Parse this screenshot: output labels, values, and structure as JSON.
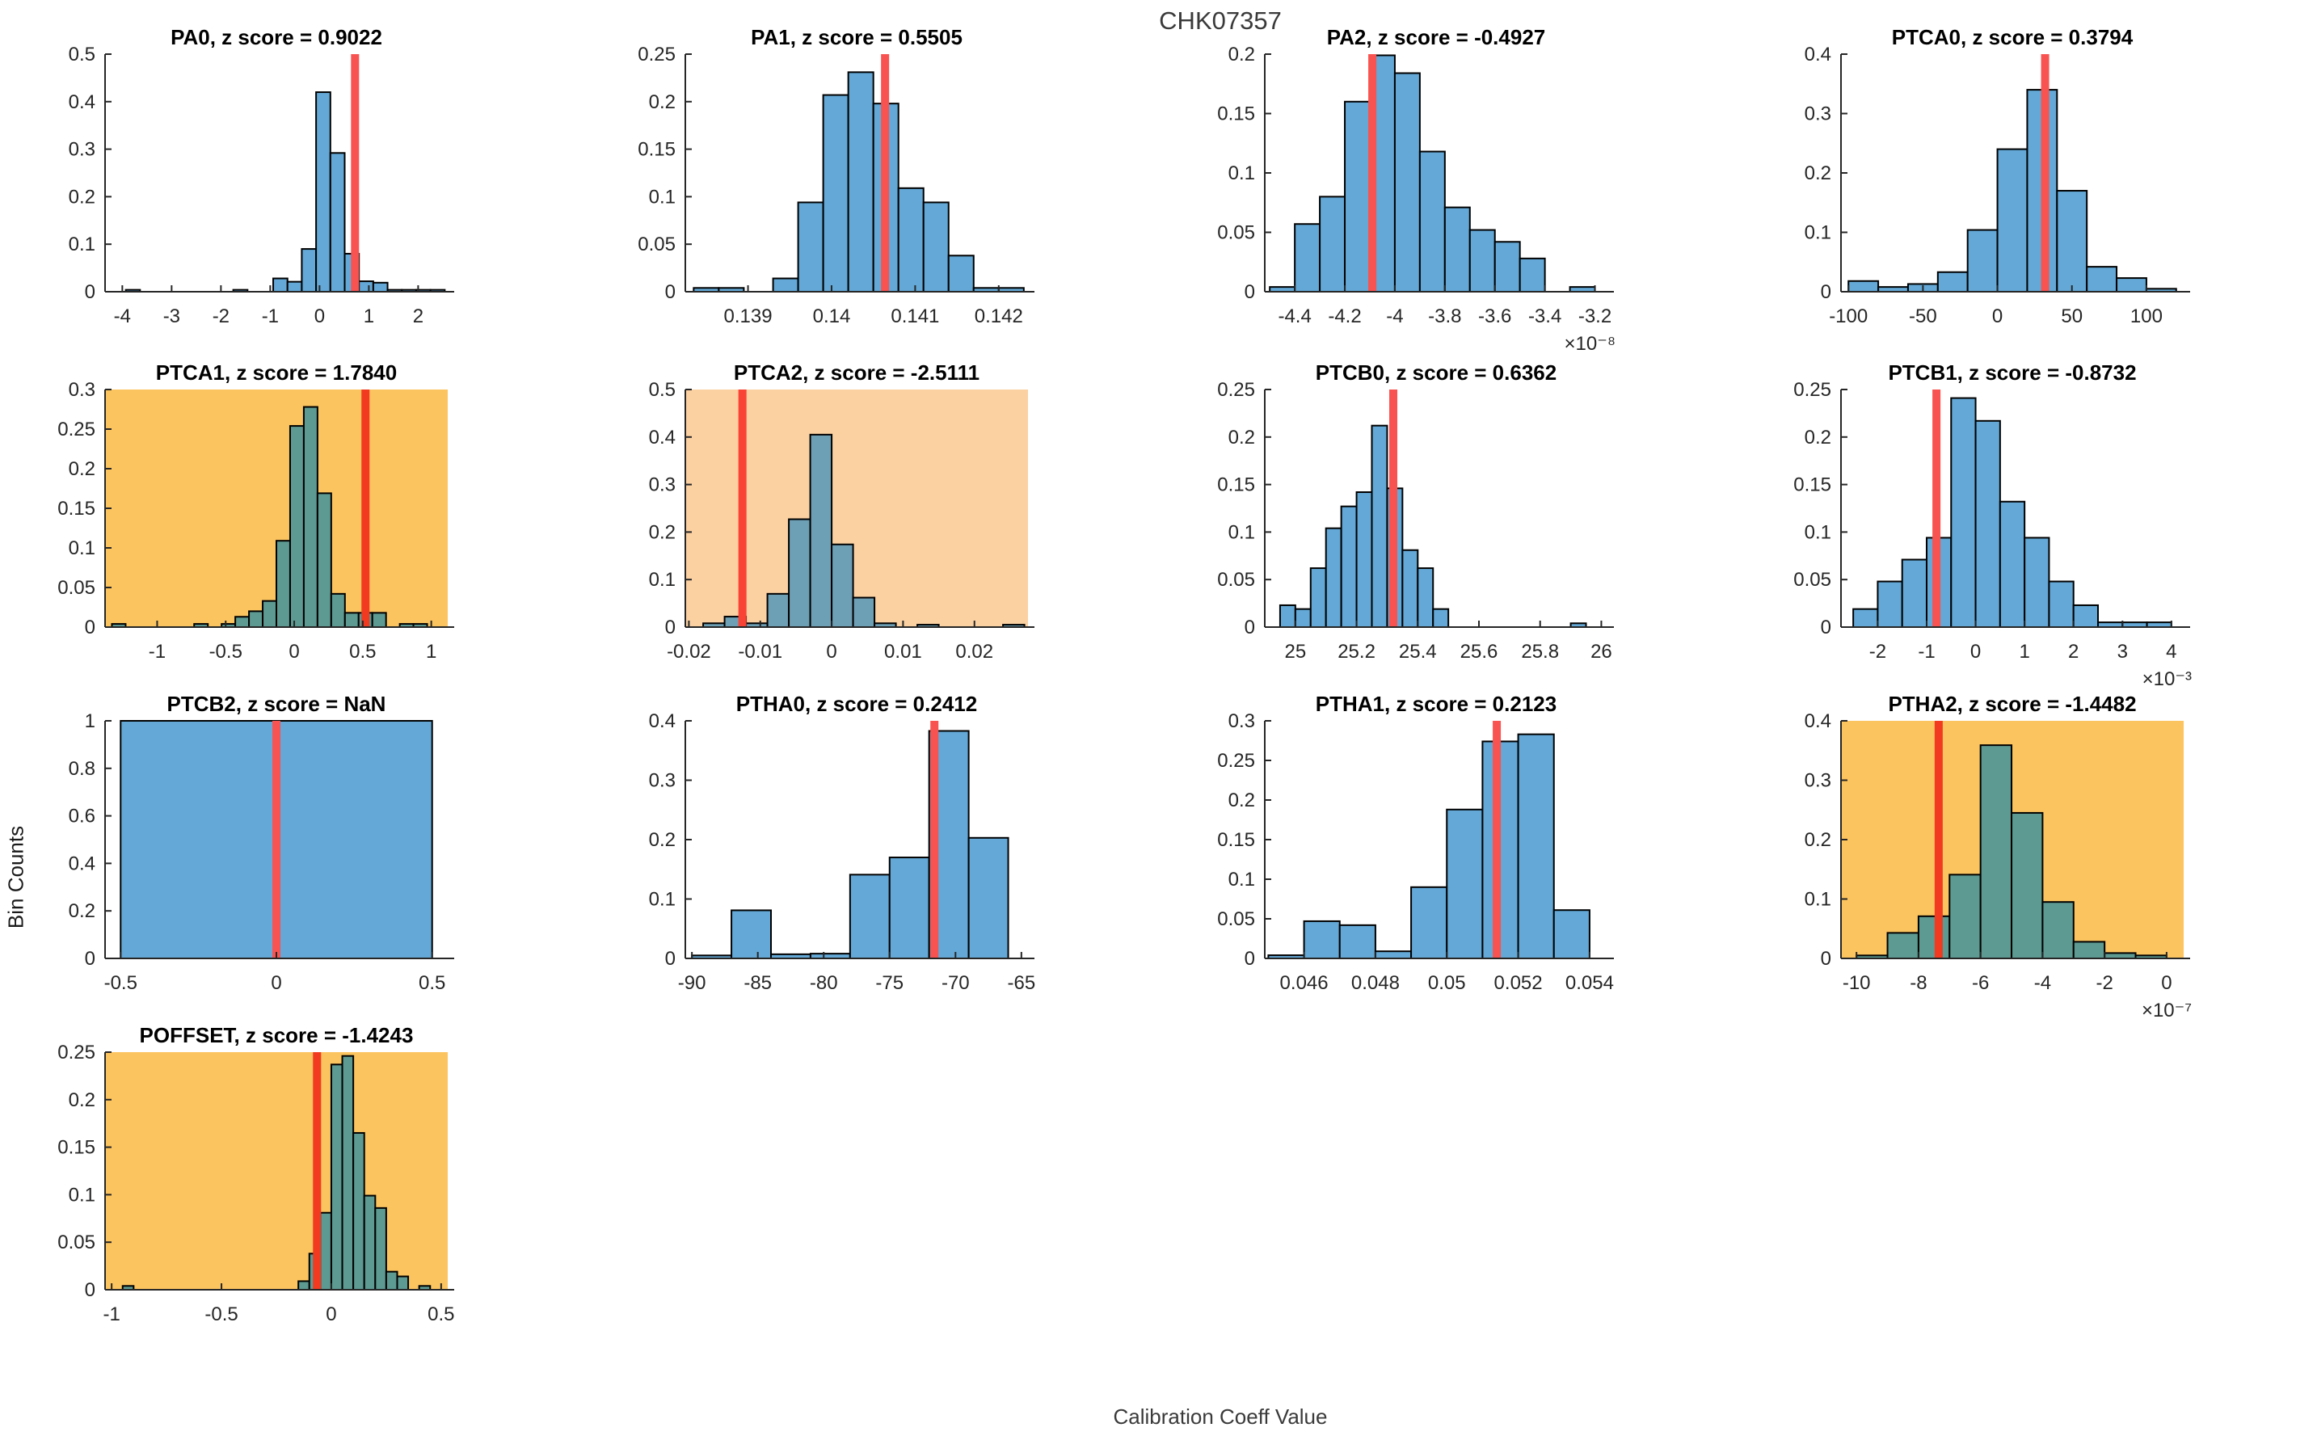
{
  "figure": {
    "title": "CHK07357",
    "xlabel": "Calibration Coeff Value",
    "ylabel": "Bin Counts"
  },
  "colors": {
    "axis": "#262626",
    "bar_edge": "#000000",
    "bar_fill_white": "#63a8d6",
    "bar_fill_gold": "#5c9a92",
    "bar_fill_peach": "#6d9fb5",
    "red_line_white": "#f85350",
    "red_line_gold": "#f23a20",
    "red_line_peach": "#f94334",
    "bg_white": "#ffffff",
    "bg_gold": "#fcc45f",
    "bg_peach": "#fbd1a2"
  },
  "chart_data": [
    {
      "type": "bar",
      "name": "PA0",
      "title": "PA0, z score = 0.9022",
      "z_score": 0.9022,
      "row": 0,
      "col": 0,
      "background": "white",
      "xlim": [
        -4.35,
        2.6
      ],
      "ylim": [
        0,
        0.5
      ],
      "xtick_values": [
        -4,
        -3,
        -2,
        -1,
        0,
        1,
        2
      ],
      "xtick_labels": [
        "-4",
        "-3",
        "-2",
        "-1",
        "0",
        "1",
        "2"
      ],
      "ytick_values": [
        0,
        0.1,
        0.2,
        0.3,
        0.4,
        0.5
      ],
      "ytick_labels": [
        "0",
        "0.1",
        "0.2",
        "0.3",
        "0.4",
        "0.5"
      ],
      "bin_width": 0.29,
      "bars": [
        [
          -3.93,
          0.004
        ],
        [
          -1.75,
          0.004
        ],
        [
          -0.94,
          0.028
        ],
        [
          -0.65,
          0.021
        ],
        [
          -0.36,
          0.09
        ],
        [
          -0.07,
          0.42
        ],
        [
          0.22,
          0.292
        ],
        [
          0.51,
          0.08
        ],
        [
          0.8,
          0.022
        ],
        [
          1.09,
          0.019
        ],
        [
          1.38,
          0.004
        ],
        [
          1.67,
          0.004
        ],
        [
          1.96,
          0.004
        ],
        [
          2.25,
          0.004
        ]
      ],
      "red_line_x": 0.72
    },
    {
      "type": "bar",
      "name": "PA1",
      "title": "PA1, z score = 0.5505",
      "z_score": 0.5505,
      "row": 0,
      "col": 1,
      "background": "white",
      "xlim": [
        0.13825,
        0.14235
      ],
      "ylim": [
        0,
        0.25
      ],
      "xtick_values": [
        0.139,
        0.14,
        0.141,
        0.142
      ],
      "xtick_labels": [
        "0.139",
        "0.14",
        "0.141",
        "0.142"
      ],
      "ytick_values": [
        0,
        0.05,
        0.1,
        0.15,
        0.2,
        0.25
      ],
      "ytick_labels": [
        "0",
        "0.05",
        "0.1",
        "0.15",
        "0.2",
        "0.25"
      ],
      "bin_width": 0.0003,
      "bars": [
        [
          0.13835,
          0.004
        ],
        [
          0.13865,
          0.004
        ],
        [
          0.1393,
          0.014
        ],
        [
          0.1396,
          0.094
        ],
        [
          0.1399,
          0.207
        ],
        [
          0.1402,
          0.231
        ],
        [
          0.1405,
          0.198
        ],
        [
          0.1408,
          0.109
        ],
        [
          0.1411,
          0.094
        ],
        [
          0.1414,
          0.038
        ],
        [
          0.1417,
          0.004
        ],
        [
          0.142,
          0.004
        ]
      ],
      "red_line_x": 0.14064
    },
    {
      "type": "bar",
      "name": "PA2",
      "title": "PA2, z score = -0.4927",
      "z_score": -0.4927,
      "row": 0,
      "col": 2,
      "background": "white",
      "xlim": [
        -4.52,
        -3.15
      ],
      "ylim": [
        0,
        0.2
      ],
      "xtick_values": [
        -4.4,
        -4.2,
        -4,
        -3.8,
        -3.6,
        -3.4,
        -3.2
      ],
      "xtick_labels": [
        "-4.4",
        "-4.2",
        "-4",
        "-3.8",
        "-3.6",
        "-3.4",
        "-3.2"
      ],
      "ytick_values": [
        0,
        0.05,
        0.1,
        0.15,
        0.2
      ],
      "ytick_labels": [
        "0",
        "0.05",
        "0.1",
        "0.15",
        "0.2"
      ],
      "x_exponent_label": "×10⁻⁸",
      "bin_width": 0.1,
      "bars": [
        [
          -4.5,
          0.004
        ],
        [
          -4.4,
          0.057
        ],
        [
          -4.3,
          0.08
        ],
        [
          -4.2,
          0.16
        ],
        [
          -4.1,
          0.199
        ],
        [
          -4.0,
          0.184
        ],
        [
          -3.9,
          0.118
        ],
        [
          -3.8,
          0.071
        ],
        [
          -3.7,
          0.052
        ],
        [
          -3.6,
          0.042
        ],
        [
          -3.5,
          0.028
        ],
        [
          -3.3,
          0.004
        ]
      ],
      "red_line_x": -4.09
    },
    {
      "type": "bar",
      "name": "PTCA0",
      "title": "PTCA0, z score = 0.3794",
      "z_score": 0.3794,
      "row": 0,
      "col": 3,
      "background": "white",
      "xlim": [
        -105,
        125
      ],
      "ylim": [
        0,
        0.4
      ],
      "xtick_values": [
        -100,
        -50,
        0,
        50,
        100
      ],
      "xtick_labels": [
        "-100",
        "-50",
        "0",
        "50",
        "100"
      ],
      "ytick_values": [
        0,
        0.1,
        0.2,
        0.3,
        0.4
      ],
      "ytick_labels": [
        "0",
        "0.1",
        "0.2",
        "0.3",
        "0.4"
      ],
      "bin_width": 20,
      "bars": [
        [
          -100,
          0.018
        ],
        [
          -80,
          0.008
        ],
        [
          -60,
          0.013
        ],
        [
          -40,
          0.033
        ],
        [
          -20,
          0.104
        ],
        [
          0,
          0.24
        ],
        [
          20,
          0.34
        ],
        [
          40,
          0.17
        ],
        [
          60,
          0.042
        ],
        [
          80,
          0.023
        ],
        [
          100,
          0.005
        ]
      ],
      "red_line_x": 32
    },
    {
      "type": "bar",
      "name": "PTCA1",
      "title": "PTCA1, z score = 1.7840",
      "z_score": 1.784,
      "row": 1,
      "col": 0,
      "background": "gold",
      "xlim": [
        -1.38,
        1.12
      ],
      "ylim": [
        0,
        0.3
      ],
      "xtick_values": [
        -1,
        -0.5,
        0,
        0.5,
        1
      ],
      "xtick_labels": [
        "-1",
        "-0.5",
        "0",
        "0.5",
        "1"
      ],
      "ytick_values": [
        0,
        0.05,
        0.1,
        0.15,
        0.2,
        0.25,
        0.3
      ],
      "ytick_labels": [
        "0",
        "0.05",
        "0.1",
        "0.15",
        "0.2",
        "0.25",
        "0.3"
      ],
      "bin_width": 0.1,
      "bars": [
        [
          -1.33,
          0.004
        ],
        [
          -0.73,
          0.004
        ],
        [
          -0.53,
          0.004
        ],
        [
          -0.43,
          0.013
        ],
        [
          -0.33,
          0.02
        ],
        [
          -0.23,
          0.033
        ],
        [
          -0.13,
          0.109
        ],
        [
          -0.03,
          0.254
        ],
        [
          0.07,
          0.278
        ],
        [
          0.17,
          0.169
        ],
        [
          0.27,
          0.042
        ],
        [
          0.37,
          0.018
        ],
        [
          0.47,
          0.018
        ],
        [
          0.57,
          0.018
        ],
        [
          0.77,
          0.004
        ],
        [
          0.87,
          0.004
        ]
      ],
      "red_line_x": 0.52
    },
    {
      "type": "bar",
      "name": "PTCA2",
      "title": "PTCA2, z score = -2.5111",
      "z_score": -2.5111,
      "row": 1,
      "col": 1,
      "background": "peach",
      "xlim": [
        -0.0205,
        0.0275
      ],
      "ylim": [
        0,
        0.5
      ],
      "xtick_values": [
        -0.02,
        -0.01,
        0,
        0.01,
        0.02
      ],
      "xtick_labels": [
        "-0.02",
        "-0.01",
        "0",
        "0.01",
        "0.02"
      ],
      "ytick_values": [
        0,
        0.1,
        0.2,
        0.3,
        0.4,
        0.5
      ],
      "ytick_labels": [
        "0",
        "0.1",
        "0.2",
        "0.3",
        "0.4",
        "0.5"
      ],
      "bin_width": 0.003,
      "bars": [
        [
          -0.018,
          0.008
        ],
        [
          -0.015,
          0.022
        ],
        [
          -0.012,
          0.008
        ],
        [
          -0.009,
          0.07
        ],
        [
          -0.006,
          0.227
        ],
        [
          -0.003,
          0.405
        ],
        [
          0,
          0.174
        ],
        [
          0.003,
          0.062
        ],
        [
          0.006,
          0.008
        ],
        [
          0.012,
          0.005
        ],
        [
          0.024,
          0.005
        ]
      ],
      "red_line_x": -0.0125
    },
    {
      "type": "bar",
      "name": "PTCB0",
      "title": "PTCB0, z score = 0.6362",
      "z_score": 0.6362,
      "row": 1,
      "col": 2,
      "background": "white",
      "xlim": [
        24.9,
        26.02
      ],
      "ylim": [
        0,
        0.25
      ],
      "xtick_values": [
        25,
        25.2,
        25.4,
        25.6,
        25.8,
        26
      ],
      "xtick_labels": [
        "25",
        "25.2",
        "25.4",
        "25.6",
        "25.8",
        "26"
      ],
      "ytick_values": [
        0,
        0.05,
        0.1,
        0.15,
        0.2,
        0.25
      ],
      "ytick_labels": [
        "0",
        "0.05",
        "0.1",
        "0.15",
        "0.2",
        "0.25"
      ],
      "bin_width": 0.05,
      "bars": [
        [
          24.95,
          0.023
        ],
        [
          25.0,
          0.019
        ],
        [
          25.05,
          0.062
        ],
        [
          25.1,
          0.104
        ],
        [
          25.15,
          0.127
        ],
        [
          25.2,
          0.142
        ],
        [
          25.25,
          0.212
        ],
        [
          25.3,
          0.146
        ],
        [
          25.35,
          0.081
        ],
        [
          25.4,
          0.062
        ],
        [
          25.45,
          0.019
        ],
        [
          25.9,
          0.004
        ]
      ],
      "red_line_x": 25.32
    },
    {
      "type": "bar",
      "name": "PTCB1",
      "title": "PTCB1, z score = -0.8732",
      "z_score": -0.8732,
      "row": 1,
      "col": 3,
      "background": "white",
      "xlim": [
        -2.75,
        4.25
      ],
      "ylim": [
        0,
        0.25
      ],
      "xtick_values": [
        -2,
        -1,
        0,
        1,
        2,
        3,
        4
      ],
      "xtick_labels": [
        "-2",
        "-1",
        "0",
        "1",
        "2",
        "3",
        "4"
      ],
      "ytick_values": [
        0,
        0.05,
        0.1,
        0.15,
        0.2,
        0.25
      ],
      "ytick_labels": [
        "0",
        "0.05",
        "0.1",
        "0.15",
        "0.2",
        "0.25"
      ],
      "x_exponent_label": "×10⁻³",
      "bin_width": 0.5,
      "bars": [
        [
          -2.5,
          0.019
        ],
        [
          -2,
          0.048
        ],
        [
          -1.5,
          0.071
        ],
        [
          -1,
          0.094
        ],
        [
          -0.5,
          0.241
        ],
        [
          0,
          0.217
        ],
        [
          0.5,
          0.132
        ],
        [
          1,
          0.094
        ],
        [
          1.5,
          0.048
        ],
        [
          2,
          0.023
        ],
        [
          2.5,
          0.005
        ],
        [
          3,
          0.005
        ],
        [
          3.5,
          0.005
        ]
      ],
      "red_line_x": -0.8
    },
    {
      "type": "bar",
      "name": "PTCB2",
      "title": "PTCB2, z score = NaN",
      "z_score": "NaN",
      "row": 2,
      "col": 0,
      "background": "white",
      "xlim": [
        -0.55,
        0.55
      ],
      "ylim": [
        0,
        1
      ],
      "xtick_values": [
        -0.5,
        0,
        0.5
      ],
      "xtick_labels": [
        "-0.5",
        "0",
        "0.5"
      ],
      "ytick_values": [
        0,
        0.2,
        0.4,
        0.6,
        0.8,
        1
      ],
      "ytick_labels": [
        "0",
        "0.2",
        "0.4",
        "0.6",
        "0.8",
        "1"
      ],
      "bin_width": 1,
      "bars": [
        [
          -0.5,
          1
        ]
      ],
      "red_line_x": 0
    },
    {
      "type": "bar",
      "name": "PTHA0",
      "title": "PTHA0, z score = 0.2412",
      "z_score": 0.2412,
      "row": 2,
      "col": 1,
      "background": "white",
      "xlim": [
        -90.5,
        -64.5
      ],
      "ylim": [
        0,
        0.4
      ],
      "xtick_values": [
        -90,
        -85,
        -80,
        -75,
        -70,
        -65
      ],
      "xtick_labels": [
        "-90",
        "-85",
        "-80",
        "-75",
        "-70",
        "-65"
      ],
      "ytick_values": [
        0,
        0.1,
        0.2,
        0.3,
        0.4
      ],
      "ytick_labels": [
        "0",
        "0.1",
        "0.2",
        "0.3",
        "0.4"
      ],
      "bin_width": 3,
      "bars": [
        [
          -90,
          0.005
        ],
        [
          -87,
          0.081
        ],
        [
          -84,
          0.007
        ],
        [
          -81,
          0.008
        ],
        [
          -78,
          0.141
        ],
        [
          -75,
          0.17
        ],
        [
          -72,
          0.383
        ],
        [
          -69,
          0.203
        ]
      ],
      "red_line_x": -71.6
    },
    {
      "type": "bar",
      "name": "PTHA1",
      "title": "PTHA1, z score = 0.2123",
      "z_score": 0.2123,
      "row": 2,
      "col": 2,
      "background": "white",
      "xlim": [
        0.0449,
        0.0545
      ],
      "ylim": [
        0,
        0.3
      ],
      "xtick_values": [
        0.046,
        0.048,
        0.05,
        0.052,
        0.054
      ],
      "xtick_labels": [
        "0.046",
        "0.048",
        "0.05",
        "0.052",
        "0.054"
      ],
      "ytick_values": [
        0,
        0.05,
        0.1,
        0.15,
        0.2,
        0.25,
        0.3
      ],
      "ytick_labels": [
        "0",
        "0.05",
        "0.1",
        "0.15",
        "0.2",
        "0.25",
        "0.3"
      ],
      "bin_width": 0.001,
      "bars": [
        [
          0.045,
          0.004
        ],
        [
          0.046,
          0.047
        ],
        [
          0.047,
          0.042
        ],
        [
          0.048,
          0.009
        ],
        [
          0.049,
          0.09
        ],
        [
          0.05,
          0.188
        ],
        [
          0.051,
          0.274
        ],
        [
          0.052,
          0.283
        ],
        [
          0.053,
          0.061
        ]
      ],
      "red_line_x": 0.0514
    },
    {
      "type": "bar",
      "name": "PTHA2",
      "title": "PTHA2, z score = -1.4482",
      "z_score": -1.4482,
      "row": 2,
      "col": 3,
      "background": "gold",
      "xlim": [
        -10.5,
        0.55
      ],
      "ylim": [
        0,
        0.4
      ],
      "xtick_values": [
        -10,
        -8,
        -6,
        -4,
        -2,
        0
      ],
      "xtick_labels": [
        "-10",
        "-8",
        "-6",
        "-4",
        "-2",
        "0"
      ],
      "ytick_values": [
        0,
        0.1,
        0.2,
        0.3,
        0.4
      ],
      "ytick_labels": [
        "0",
        "0.1",
        "0.2",
        "0.3",
        "0.4"
      ],
      "x_exponent_label": "×10⁻⁷",
      "bin_width": 1,
      "bars": [
        [
          -10,
          0.005
        ],
        [
          -9,
          0.043
        ],
        [
          -8,
          0.071
        ],
        [
          -7,
          0.141
        ],
        [
          -6,
          0.359
        ],
        [
          -5,
          0.245
        ],
        [
          -4,
          0.095
        ],
        [
          -3,
          0.028
        ],
        [
          -2,
          0.009
        ],
        [
          -1,
          0.005
        ]
      ],
      "red_line_x": -7.35
    },
    {
      "type": "bar",
      "name": "POFFSET",
      "title": "POFFSET, z score = -1.4243",
      "z_score": -1.4243,
      "row": 3,
      "col": 0,
      "background": "gold",
      "xlim": [
        -1.03,
        0.53
      ],
      "ylim": [
        0,
        0.25
      ],
      "xtick_values": [
        -1,
        -0.5,
        0,
        0.5
      ],
      "xtick_labels": [
        "-1",
        "-0.5",
        "0",
        "0.5"
      ],
      "ytick_values": [
        0,
        0.05,
        0.1,
        0.15,
        0.2,
        0.25
      ],
      "ytick_labels": [
        "0",
        "0.05",
        "0.1",
        "0.15",
        "0.2",
        "0.25"
      ],
      "bin_width": 0.05,
      "bars": [
        [
          -0.95,
          0.004
        ],
        [
          -0.15,
          0.009
        ],
        [
          -0.1,
          0.038
        ],
        [
          -0.05,
          0.081
        ],
        [
          0,
          0.237
        ],
        [
          0.05,
          0.246
        ],
        [
          0.1,
          0.165
        ],
        [
          0.15,
          0.099
        ],
        [
          0.2,
          0.086
        ],
        [
          0.25,
          0.019
        ],
        [
          0.3,
          0.014
        ],
        [
          0.4,
          0.004
        ]
      ],
      "red_line_x": -0.065
    }
  ]
}
